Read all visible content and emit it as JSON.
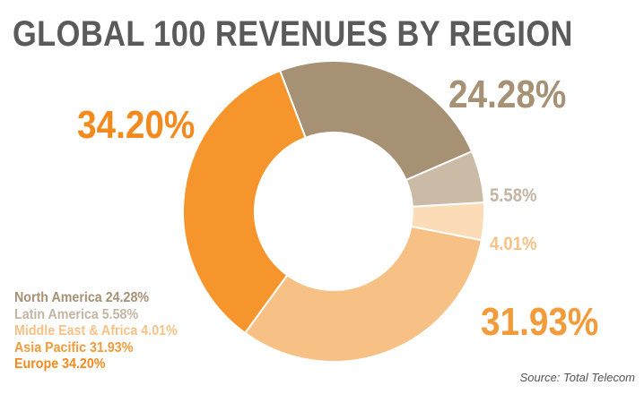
{
  "title": "GLOBAL 100 REVENUES BY REGION",
  "source": "Source: Total Telecom",
  "chart_data": {
    "type": "pie",
    "donut": true,
    "title": "GLOBAL 100 REVENUES BY REGION",
    "series": [
      {
        "name": "North America",
        "value": 24.28,
        "label": "24.28%",
        "legend": "North America 24.28%",
        "color": "#a69175"
      },
      {
        "name": "Latin America",
        "value": 5.58,
        "label": "5.58%",
        "legend": "Latin America 5.58%",
        "color": "#cbbba6"
      },
      {
        "name": "Middle East & Africa",
        "value": 4.01,
        "label": "4.01%",
        "legend": "Middle East & Africa 4.01%",
        "color": "#fbdcb6"
      },
      {
        "name": "Asia Pacific",
        "value": 31.93,
        "label": "31.93%",
        "legend": "Asia Pacific 31.93%",
        "color": "#f7c186"
      },
      {
        "name": "Europe",
        "value": 34.2,
        "label": "34.20%",
        "legend": "Europe 34.20%",
        "color": "#f5952b"
      }
    ],
    "label_colors": {
      "North America": "#a69175",
      "Latin America": "#c2b5a3",
      "Middle East & Africa": "#f7c186",
      "Asia Pacific": "#f39a3a",
      "Europe": "#f38a1e"
    },
    "legend_placement": "bottom-left"
  }
}
